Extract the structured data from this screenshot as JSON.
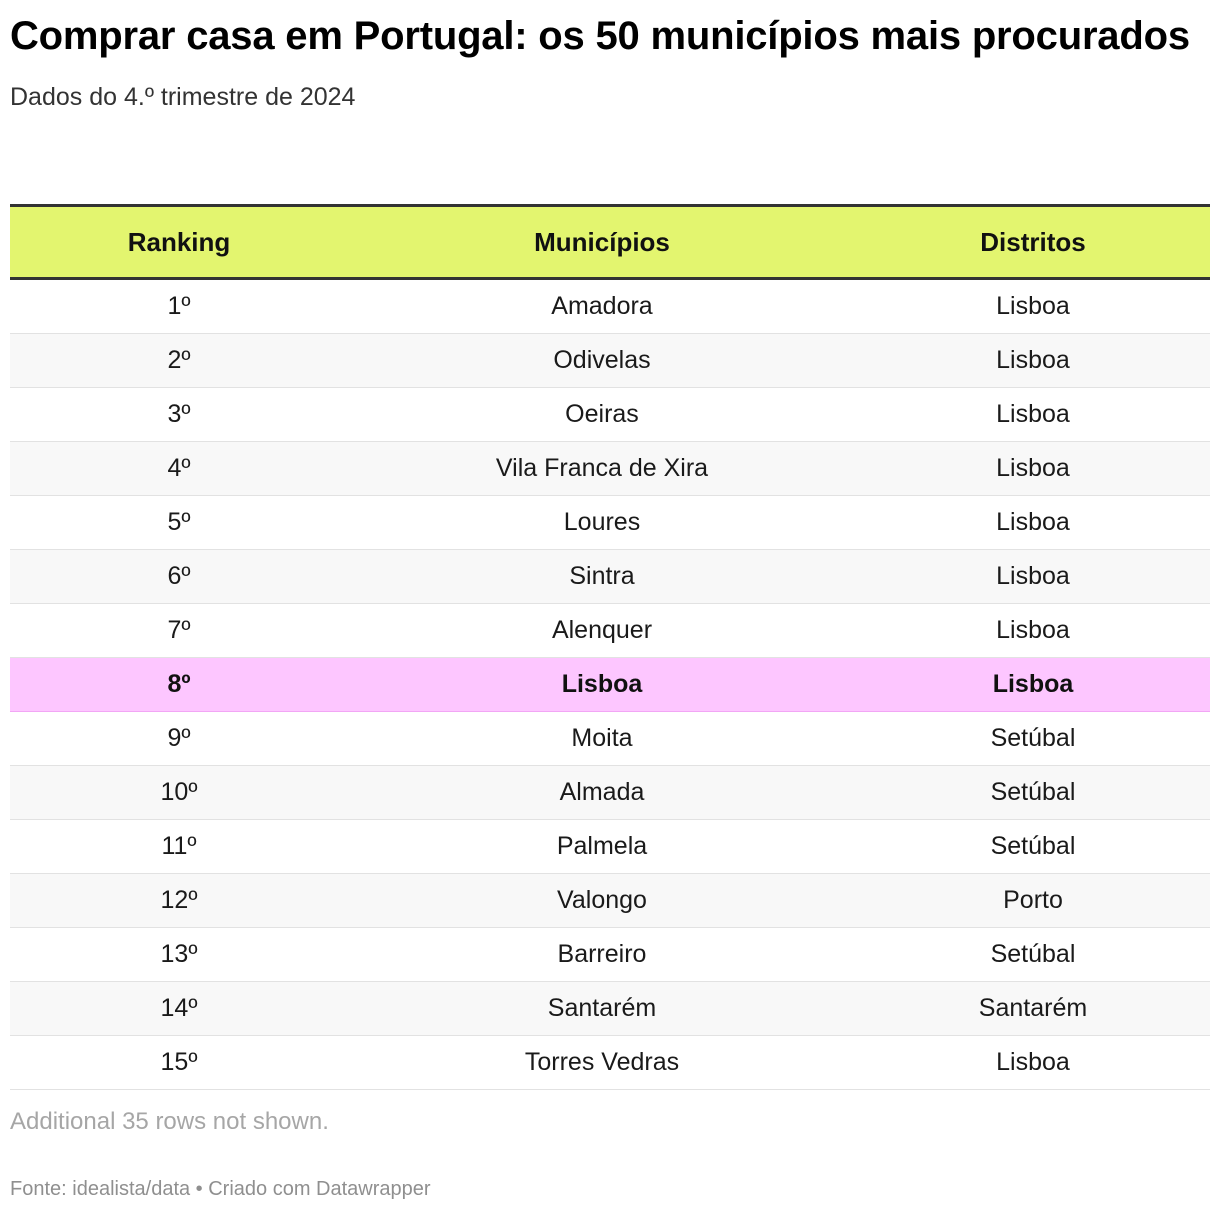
{
  "chart_data": {
    "type": "table",
    "title": "Comprar casa em Portugal: os 50 municípios mais procurados",
    "subtitle": "Dados do 4.º trimestre de 2024",
    "columns": [
      "Ranking",
      "Municípios",
      "Distritos"
    ],
    "rows": [
      {
        "ranking": "1º",
        "municipio": "Amadora",
        "distrito": "Lisboa",
        "highlight": false
      },
      {
        "ranking": "2º",
        "municipio": "Odivelas",
        "distrito": "Lisboa",
        "highlight": false
      },
      {
        "ranking": "3º",
        "municipio": "Oeiras",
        "distrito": "Lisboa",
        "highlight": false
      },
      {
        "ranking": "4º",
        "municipio": "Vila Franca de Xira",
        "distrito": "Lisboa",
        "highlight": false
      },
      {
        "ranking": "5º",
        "municipio": "Loures",
        "distrito": "Lisboa",
        "highlight": false
      },
      {
        "ranking": "6º",
        "municipio": "Sintra",
        "distrito": "Lisboa",
        "highlight": false
      },
      {
        "ranking": "7º",
        "municipio": "Alenquer",
        "distrito": "Lisboa",
        "highlight": false
      },
      {
        "ranking": "8º",
        "municipio": "Lisboa",
        "distrito": "Lisboa",
        "highlight": true
      },
      {
        "ranking": "9º",
        "municipio": "Moita",
        "distrito": "Setúbal",
        "highlight": false
      },
      {
        "ranking": "10º",
        "municipio": "Almada",
        "distrito": "Setúbal",
        "highlight": false
      },
      {
        "ranking": "11º",
        "municipio": "Palmela",
        "distrito": "Setúbal",
        "highlight": false
      },
      {
        "ranking": "12º",
        "municipio": "Valongo",
        "distrito": "Porto",
        "highlight": false
      },
      {
        "ranking": "13º",
        "municipio": "Barreiro",
        "distrito": "Setúbal",
        "highlight": false
      },
      {
        "ranking": "14º",
        "municipio": "Santarém",
        "distrito": "Santarém",
        "highlight": false
      },
      {
        "ranking": "15º",
        "municipio": "Torres Vedras",
        "distrito": "Lisboa",
        "highlight": false
      }
    ],
    "notes": "Additional 35 rows not shown.",
    "footer": "Fonte: idealista/data • Criado com Datawrapper"
  },
  "colors": {
    "header_bg": "#e3f56f",
    "highlight_bg": "#fdc6ff",
    "stripe_bg": "#f8f8f8"
  }
}
